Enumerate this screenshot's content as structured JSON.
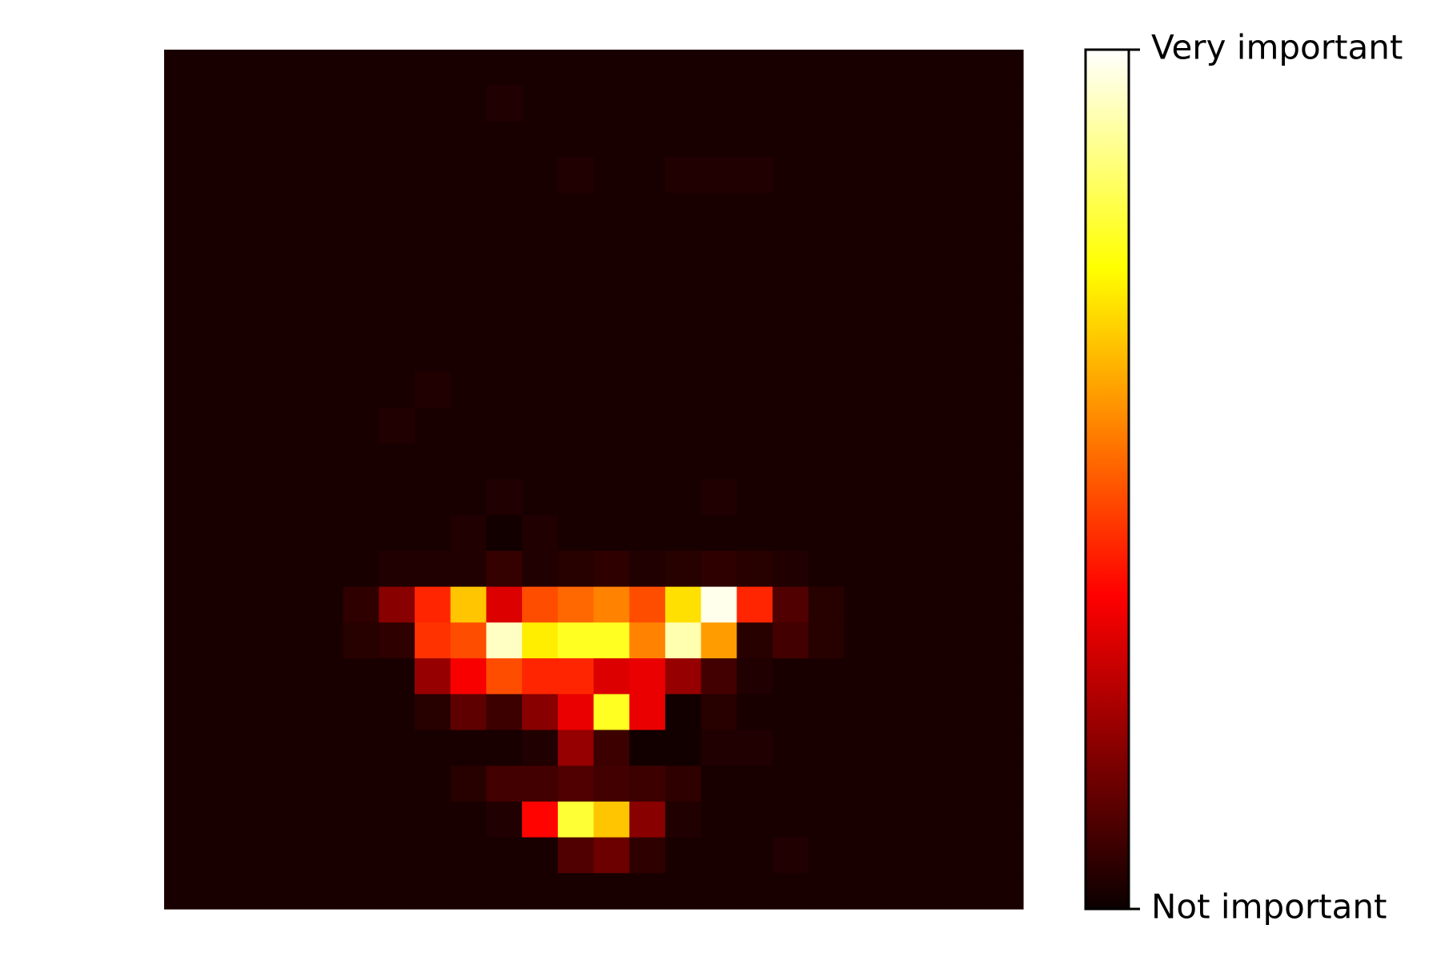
{
  "chart_data": {
    "type": "heatmap",
    "title": "",
    "xlabel": "",
    "ylabel": "",
    "rows": 24,
    "cols": 24,
    "colormap": "hot",
    "axes_visible": false,
    "grid": false,
    "colorbar": {
      "orientation": "vertical",
      "position": "right",
      "range": [
        0,
        1
      ],
      "tick_values": [
        1,
        0
      ],
      "tick_labels": [
        "Very important",
        "Not important"
      ]
    },
    "values": [
      [
        0.02,
        0.02,
        0.02,
        0.02,
        0.02,
        0.02,
        0.02,
        0.02,
        0.02,
        0.02,
        0.02,
        0.02,
        0.02,
        0.02,
        0.02,
        0.02,
        0.02,
        0.02,
        0.02,
        0.02,
        0.02,
        0.02,
        0.02,
        0.02
      ],
      [
        0.02,
        0.02,
        0.02,
        0.02,
        0.02,
        0.02,
        0.02,
        0.02,
        0.02,
        0.03,
        0.02,
        0.02,
        0.02,
        0.02,
        0.02,
        0.02,
        0.02,
        0.02,
        0.02,
        0.02,
        0.02,
        0.02,
        0.02,
        0.02
      ],
      [
        0.02,
        0.02,
        0.02,
        0.02,
        0.02,
        0.02,
        0.02,
        0.02,
        0.02,
        0.02,
        0.02,
        0.02,
        0.02,
        0.02,
        0.02,
        0.02,
        0.02,
        0.02,
        0.02,
        0.02,
        0.02,
        0.02,
        0.02,
        0.02
      ],
      [
        0.02,
        0.02,
        0.02,
        0.02,
        0.02,
        0.02,
        0.02,
        0.02,
        0.02,
        0.02,
        0.02,
        0.03,
        0.02,
        0.02,
        0.03,
        0.03,
        0.03,
        0.02,
        0.02,
        0.02,
        0.02,
        0.02,
        0.02,
        0.02
      ],
      [
        0.02,
        0.02,
        0.02,
        0.02,
        0.02,
        0.02,
        0.02,
        0.02,
        0.02,
        0.02,
        0.02,
        0.02,
        0.02,
        0.02,
        0.02,
        0.02,
        0.02,
        0.02,
        0.02,
        0.02,
        0.02,
        0.02,
        0.02,
        0.02
      ],
      [
        0.02,
        0.02,
        0.02,
        0.02,
        0.02,
        0.02,
        0.02,
        0.02,
        0.02,
        0.02,
        0.02,
        0.02,
        0.02,
        0.02,
        0.02,
        0.02,
        0.02,
        0.02,
        0.02,
        0.02,
        0.02,
        0.02,
        0.02,
        0.02
      ],
      [
        0.02,
        0.02,
        0.02,
        0.02,
        0.02,
        0.02,
        0.02,
        0.02,
        0.02,
        0.02,
        0.02,
        0.02,
        0.02,
        0.02,
        0.02,
        0.02,
        0.02,
        0.02,
        0.02,
        0.02,
        0.02,
        0.02,
        0.02,
        0.02
      ],
      [
        0.02,
        0.02,
        0.02,
        0.02,
        0.02,
        0.02,
        0.02,
        0.02,
        0.02,
        0.02,
        0.02,
        0.02,
        0.02,
        0.02,
        0.02,
        0.02,
        0.02,
        0.02,
        0.02,
        0.02,
        0.02,
        0.02,
        0.02,
        0.02
      ],
      [
        0.02,
        0.02,
        0.02,
        0.02,
        0.02,
        0.02,
        0.02,
        0.02,
        0.02,
        0.02,
        0.02,
        0.02,
        0.02,
        0.02,
        0.02,
        0.02,
        0.02,
        0.02,
        0.02,
        0.02,
        0.02,
        0.02,
        0.02,
        0.02
      ],
      [
        0.02,
        0.02,
        0.02,
        0.02,
        0.02,
        0.02,
        0.02,
        0.03,
        0.02,
        0.02,
        0.02,
        0.02,
        0.02,
        0.02,
        0.02,
        0.02,
        0.02,
        0.02,
        0.02,
        0.02,
        0.02,
        0.02,
        0.02,
        0.02
      ],
      [
        0.02,
        0.02,
        0.02,
        0.02,
        0.02,
        0.02,
        0.03,
        0.02,
        0.02,
        0.02,
        0.02,
        0.02,
        0.02,
        0.02,
        0.02,
        0.02,
        0.02,
        0.02,
        0.02,
        0.02,
        0.02,
        0.02,
        0.02,
        0.02
      ],
      [
        0.02,
        0.02,
        0.02,
        0.02,
        0.02,
        0.02,
        0.02,
        0.02,
        0.02,
        0.02,
        0.02,
        0.02,
        0.02,
        0.02,
        0.02,
        0.02,
        0.02,
        0.02,
        0.02,
        0.02,
        0.02,
        0.02,
        0.02,
        0.02
      ],
      [
        0.02,
        0.02,
        0.02,
        0.02,
        0.02,
        0.02,
        0.02,
        0.02,
        0.02,
        0.03,
        0.02,
        0.02,
        0.02,
        0.02,
        0.02,
        0.03,
        0.02,
        0.02,
        0.02,
        0.02,
        0.02,
        0.02,
        0.02,
        0.02
      ],
      [
        0.02,
        0.02,
        0.02,
        0.02,
        0.02,
        0.02,
        0.02,
        0.02,
        0.03,
        0.01,
        0.03,
        0.02,
        0.02,
        0.02,
        0.02,
        0.02,
        0.02,
        0.02,
        0.02,
        0.02,
        0.02,
        0.02,
        0.02,
        0.02
      ],
      [
        0.02,
        0.02,
        0.02,
        0.02,
        0.02,
        0.02,
        0.03,
        0.03,
        0.03,
        0.06,
        0.03,
        0.04,
        0.05,
        0.03,
        0.04,
        0.05,
        0.04,
        0.03,
        0.02,
        0.02,
        0.02,
        0.02,
        0.02,
        0.02
      ],
      [
        0.02,
        0.02,
        0.02,
        0.02,
        0.02,
        0.05,
        0.18,
        0.42,
        0.66,
        0.3,
        0.48,
        0.52,
        0.56,
        0.48,
        0.7,
        0.98,
        0.42,
        0.1,
        0.04,
        0.02,
        0.02,
        0.02,
        0.02,
        0.02
      ],
      [
        0.02,
        0.02,
        0.02,
        0.02,
        0.02,
        0.04,
        0.05,
        0.44,
        0.48,
        0.94,
        0.72,
        0.78,
        0.78,
        0.56,
        0.92,
        0.6,
        0.04,
        0.08,
        0.04,
        0.02,
        0.02,
        0.02,
        0.02,
        0.02
      ],
      [
        0.02,
        0.02,
        0.02,
        0.02,
        0.02,
        0.02,
        0.02,
        0.2,
        0.34,
        0.48,
        0.42,
        0.42,
        0.3,
        0.32,
        0.2,
        0.08,
        0.03,
        0.02,
        0.02,
        0.02,
        0.02,
        0.02,
        0.02,
        0.02
      ],
      [
        0.02,
        0.02,
        0.02,
        0.02,
        0.02,
        0.02,
        0.02,
        0.04,
        0.12,
        0.07,
        0.18,
        0.32,
        0.78,
        0.32,
        0.01,
        0.04,
        0.02,
        0.02,
        0.02,
        0.02,
        0.02,
        0.02,
        0.02,
        0.02
      ],
      [
        0.02,
        0.02,
        0.02,
        0.02,
        0.02,
        0.02,
        0.02,
        0.02,
        0.02,
        0.02,
        0.03,
        0.2,
        0.07,
        0.01,
        0.01,
        0.03,
        0.03,
        0.02,
        0.02,
        0.02,
        0.02,
        0.02,
        0.02,
        0.02
      ],
      [
        0.02,
        0.02,
        0.02,
        0.02,
        0.02,
        0.02,
        0.02,
        0.02,
        0.04,
        0.08,
        0.08,
        0.1,
        0.08,
        0.07,
        0.05,
        0.02,
        0.02,
        0.02,
        0.02,
        0.02,
        0.02,
        0.02,
        0.02,
        0.02
      ],
      [
        0.02,
        0.02,
        0.02,
        0.02,
        0.02,
        0.02,
        0.02,
        0.02,
        0.02,
        0.03,
        0.37,
        0.8,
        0.66,
        0.18,
        0.03,
        0.02,
        0.02,
        0.02,
        0.02,
        0.02,
        0.02,
        0.02,
        0.02,
        0.02
      ],
      [
        0.02,
        0.02,
        0.02,
        0.02,
        0.02,
        0.02,
        0.02,
        0.02,
        0.02,
        0.02,
        0.02,
        0.1,
        0.14,
        0.05,
        0.02,
        0.02,
        0.02,
        0.03,
        0.02,
        0.02,
        0.02,
        0.02,
        0.02,
        0.02
      ],
      [
        0.02,
        0.02,
        0.02,
        0.02,
        0.02,
        0.02,
        0.02,
        0.02,
        0.02,
        0.02,
        0.02,
        0.02,
        0.02,
        0.02,
        0.02,
        0.02,
        0.02,
        0.02,
        0.02,
        0.02,
        0.02,
        0.02,
        0.02,
        0.02
      ]
    ]
  }
}
